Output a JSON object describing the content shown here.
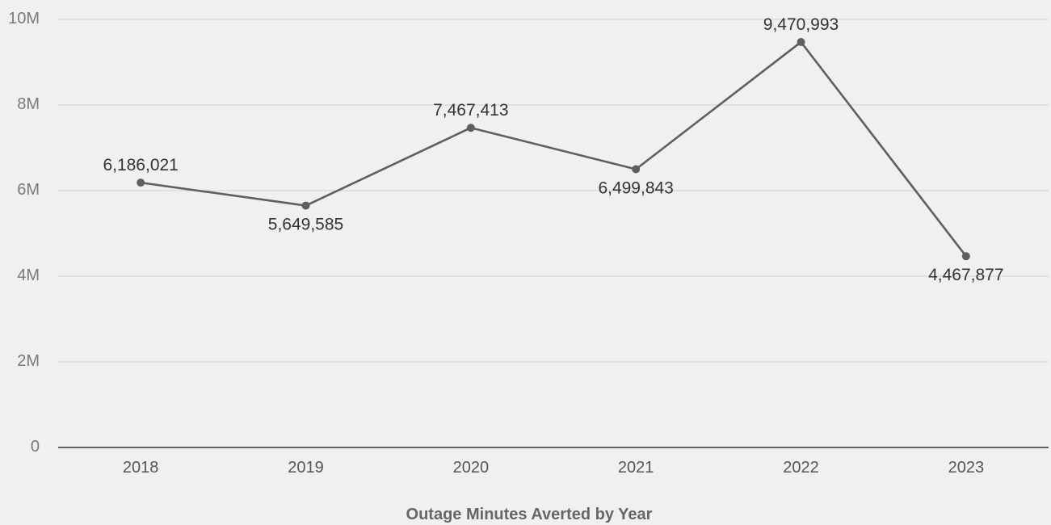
{
  "chart_data": {
    "type": "line",
    "title": "",
    "xlabel": "Outage Minutes Averted by Year",
    "ylabel": "",
    "categories": [
      "2018",
      "2019",
      "2020",
      "2021",
      "2022",
      "2023"
    ],
    "series": [
      {
        "values": [
          6186021,
          5649585,
          7467413,
          6499843,
          9470993,
          4467877
        ],
        "data_labels": [
          "6,186,021",
          "5,649,585",
          "7,467,413",
          "6,499,843",
          "9,470,993",
          "4,467,877"
        ]
      }
    ],
    "ylim": [
      0,
      10000000
    ],
    "yticks": [
      0,
      2000000,
      4000000,
      6000000,
      8000000,
      10000000
    ],
    "ytick_labels": [
      "0",
      "2M",
      "4M",
      "6M",
      "8M",
      "10M"
    ],
    "grid": true,
    "legend": "none",
    "colors": {
      "background": "#f0f0f0",
      "line": "#5f5f5f",
      "grid": "#d6d6d6",
      "axis": "#333333"
    }
  }
}
